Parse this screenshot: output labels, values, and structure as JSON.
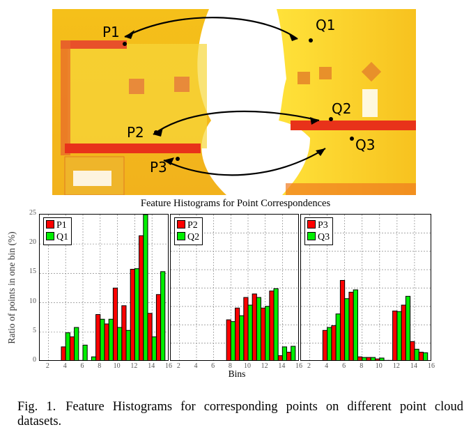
{
  "figure": {
    "photo": {
      "description": "Two colored point cloud scans of a kitchen with corresponding points connected by double-headed arrows",
      "labels_left": [
        "P1",
        "P2",
        "P3"
      ],
      "labels_right": [
        "Q1",
        "Q2",
        "Q3"
      ]
    },
    "caption_label": "Fig. 1.",
    "caption_text": "Feature Histograms for corresponding points on different point cloud datasets."
  },
  "chart_data": {
    "type": "bar",
    "title": "Feature Histograms for Point Correspondences",
    "xlabel": "Bins",
    "ylabel": "Ratio of points in one bin (%)",
    "ylim": [
      0,
      25
    ],
    "yticks": [
      "0",
      "5",
      "10",
      "15",
      "20",
      "25"
    ],
    "xticks": [
      "2",
      "4",
      "6",
      "8",
      "10",
      "12",
      "14",
      "16"
    ],
    "grid": true,
    "legend_position": "upper left",
    "colors": {
      "P": "#ff0000",
      "Q": "#00ee00"
    },
    "bins": [
      4,
      5,
      6,
      7,
      8,
      9,
      10,
      11,
      12,
      13,
      14,
      15
    ],
    "panels": [
      {
        "legend": [
          "P1",
          "Q1"
        ],
        "series": [
          {
            "name": "P1",
            "values": [
              2.5,
              4.2,
              0.2,
              0.0,
              8.0,
              6.4,
              12.5,
              9.5,
              15.7,
              21.4,
              8.2,
              11.4
            ]
          },
          {
            "name": "Q1",
            "values": [
              4.9,
              5.8,
              2.8,
              0.8,
              7.2,
              7.2,
              5.8,
              5.3,
              15.8,
              25.0,
              4.2,
              15.3
            ]
          }
        ]
      },
      {
        "legend": [
          "P2",
          "Q2"
        ],
        "series": [
          {
            "name": "P2",
            "values": [
              0.1,
              0.1,
              0.0,
              0.0,
              7.1,
              9.1,
              10.9,
              11.5,
              9.1,
              12.0,
              1.0,
              1.6
            ]
          },
          {
            "name": "Q2",
            "values": [
              0.0,
              0.0,
              0.0,
              0.0,
              6.8,
              7.8,
              9.6,
              10.9,
              9.4,
              12.4,
              2.5,
              2.6
            ]
          }
        ]
      },
      {
        "legend": [
          "P3",
          "Q3"
        ],
        "series": [
          {
            "name": "P3",
            "values": [
              5.3,
              6.1,
              13.8,
              11.8,
              0.8,
              0.7,
              0.45,
              0.2,
              8.6,
              9.6,
              3.4,
              1.6
            ]
          },
          {
            "name": "Q3",
            "values": [
              5.8,
              8.1,
              10.7,
              12.2,
              0.7,
              0.7,
              0.6,
              0.2,
              8.5,
              11.1,
              2.1,
              1.5
            ]
          }
        ]
      }
    ]
  }
}
